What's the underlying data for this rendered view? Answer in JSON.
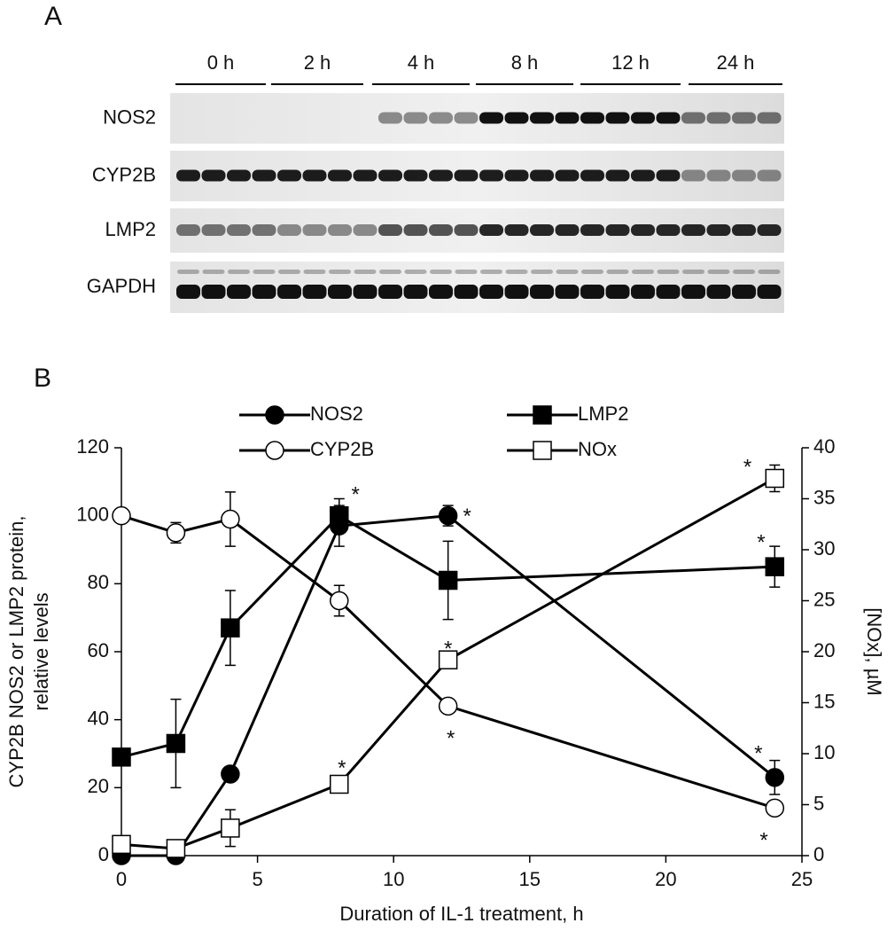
{
  "panel_a": {
    "label": "A",
    "timepoints": [
      "0 h",
      "2 h",
      "4 h",
      "8 h",
      "12 h",
      "24 h"
    ],
    "proteins": [
      "NOS2",
      "CYP2B",
      "LMP2",
      "GAPDH"
    ]
  },
  "chart_data": {
    "type": "line",
    "panel_label": "B",
    "xlabel": "Duration of IL-1 treatment, h",
    "ylabel": [
      "CYP2B NOS2 or LMP2 protein,",
      "relative levels"
    ],
    "y2label": "[NOx], µM",
    "x": [
      0,
      2,
      4,
      8,
      12,
      24
    ],
    "xlim": [
      0,
      25
    ],
    "xticks": [
      0,
      5,
      10,
      15,
      20,
      25
    ],
    "ylim": [
      0,
      120
    ],
    "yticks": [
      0,
      20,
      40,
      60,
      80,
      100,
      120
    ],
    "y2lim": [
      0,
      40
    ],
    "y2ticks": [
      0,
      5,
      10,
      15,
      20,
      25,
      30,
      35,
      40
    ],
    "grid": false,
    "series": [
      {
        "name": "NOS2",
        "color": "#000000",
        "marker": "circle",
        "filled": true,
        "values": [
          0,
          0,
          24,
          97,
          100,
          23
        ],
        "errors": [
          0,
          0,
          1,
          6,
          3,
          5
        ]
      },
      {
        "name": "CYP2B",
        "color": "#000000",
        "marker": "circle",
        "filled": false,
        "values": [
          100,
          95,
          99,
          75,
          44,
          14
        ],
        "errors": [
          0,
          3,
          8,
          4.5,
          0,
          2
        ]
      },
      {
        "name": "LMP2",
        "color": "#000000",
        "marker": "square",
        "filled": true,
        "values": [
          29,
          33,
          67,
          100,
          81,
          85
        ],
        "errors": [
          0,
          13,
          11,
          5,
          11.5,
          6
        ]
      },
      {
        "name": "NOx",
        "color": "#000000",
        "marker": "square",
        "filled": false,
        "axis": "y2",
        "values": [
          1.1,
          0.7,
          2.7,
          7,
          19.2,
          37
        ],
        "errors": [
          0,
          0,
          1.8,
          0.5,
          0.6,
          1.3
        ]
      }
    ],
    "annotations": [
      {
        "text": "*",
        "x": 8.6,
        "y": 107.5
      },
      {
        "text": "*",
        "x": 12.7,
        "y": 101
      },
      {
        "text": "*",
        "x": 12,
        "y": 62
      },
      {
        "text": "*",
        "x": 12.1,
        "y": 35.7
      },
      {
        "text": "*",
        "x": 8.1,
        "y": 27
      },
      {
        "text": "*",
        "x": 23,
        "y": 115.5
      },
      {
        "text": "*",
        "x": 23.5,
        "y": 93.4
      },
      {
        "text": "*",
        "x": 23.4,
        "y": 31.3
      },
      {
        "text": "*",
        "x": 23.6,
        "y": 5.7
      }
    ]
  }
}
